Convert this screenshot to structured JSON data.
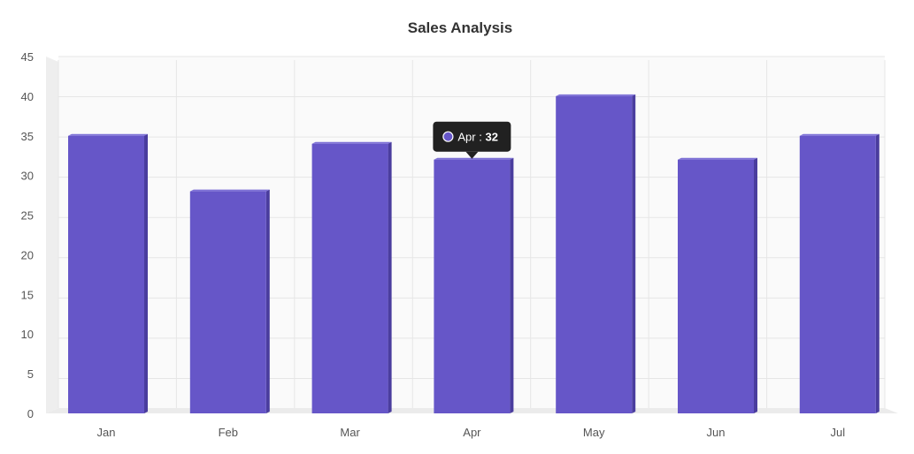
{
  "chart_data": {
    "type": "bar",
    "title": "Sales Analysis",
    "xlabel": "",
    "ylabel": "",
    "categories": [
      "Jan",
      "Feb",
      "Mar",
      "Apr",
      "May",
      "Jun",
      "Jul"
    ],
    "values": [
      35,
      28,
      34,
      32,
      40,
      32,
      35
    ],
    "ylim": [
      0,
      45
    ],
    "yticks": [
      0,
      5,
      10,
      15,
      20,
      25,
      30,
      35,
      40,
      45
    ],
    "grid": true,
    "style": "3d-columns",
    "colors": {
      "bar_front": "#6656c8",
      "bar_side": "#4a3d9e",
      "bar_top": "#7d70d6",
      "grid": "#e6e6e6",
      "back_wall": "#fafafa",
      "side_wall": "#eeeeee",
      "floor": "#ebebeb",
      "tooltip_bg": "#212121",
      "tooltip_marker": "#6656c8"
    },
    "tooltip": {
      "category": "Apr",
      "label": "Apr",
      "separator": " : ",
      "value": "32"
    }
  }
}
